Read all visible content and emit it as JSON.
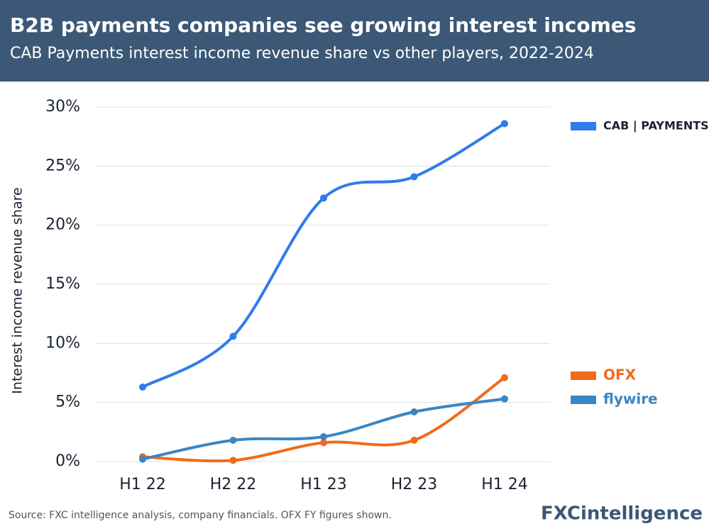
{
  "chart_data": {
    "type": "line",
    "title": "B2B payments companies see growing interest incomes",
    "subtitle": "CAB Payments interest income revenue share vs other players, 2022-2024",
    "y_label": "Interest income revenue share",
    "source": "Source: FXC intelligence analysis, company financials. OFX FY figures shown.",
    "logo": "FXCintelligence",
    "categories": [
      "H1 22",
      "H2 22",
      "H1 23",
      "H2 23",
      "H1 24"
    ],
    "series": [
      {
        "name": "CAB | PAYMENTS",
        "color": "#2f7bef",
        "values": [
          6.3,
          10.6,
          22.3,
          24.1,
          28.6
        ]
      },
      {
        "name": "OFX",
        "color": "#f26a1b",
        "values": [
          0.4,
          0.1,
          1.6,
          1.8,
          7.1
        ]
      },
      {
        "name": "flywire",
        "color": "#3a86c4",
        "values": [
          0.2,
          1.8,
          2.1,
          4.2,
          5.3
        ]
      }
    ],
    "ylim": [
      0,
      30
    ],
    "yticks": [
      {
        "value": 0,
        "label": "0%"
      },
      {
        "value": 5,
        "label": "5%"
      },
      {
        "value": 10,
        "label": "10%"
      },
      {
        "value": 15,
        "label": "15%"
      },
      {
        "value": 20,
        "label": "20%"
      },
      {
        "value": 25,
        "label": "25%"
      },
      {
        "value": 30,
        "label": "30%"
      }
    ],
    "grid": true
  }
}
